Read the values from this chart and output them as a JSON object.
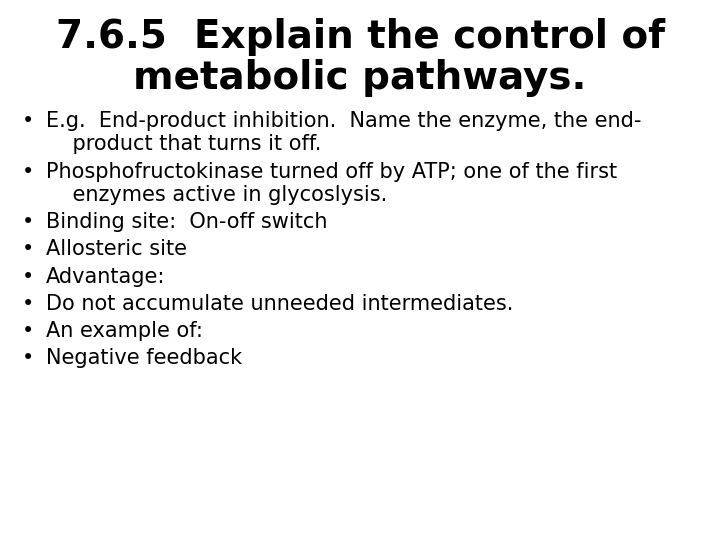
{
  "title_line1": "7.6.5  Explain the control of",
  "title_line2": "metabolic pathways.",
  "title_fontsize": 28,
  "title_color": "#000000",
  "background_color": "#ffffff",
  "bullet_fontsize": 15,
  "bullet_color": "#000000",
  "bullet_symbol": "•",
  "bullet_lines": [
    [
      "E.g.  End-product inhibition.  Name the enzyme, the end-",
      "    product that turns it off."
    ],
    [
      "Phosphofructokinase turned off by ATP; one of the first",
      "    enzymes active in glycoslysis."
    ],
    [
      "Binding site:  On-off switch"
    ],
    [
      "Allosteric site"
    ],
    [
      "Advantage:"
    ],
    [
      "Do not accumulate unneeded intermediates."
    ],
    [
      "An example of:"
    ],
    [
      "Negative feedback"
    ]
  ],
  "fig_width": 7.2,
  "fig_height": 5.4,
  "dpi": 100
}
